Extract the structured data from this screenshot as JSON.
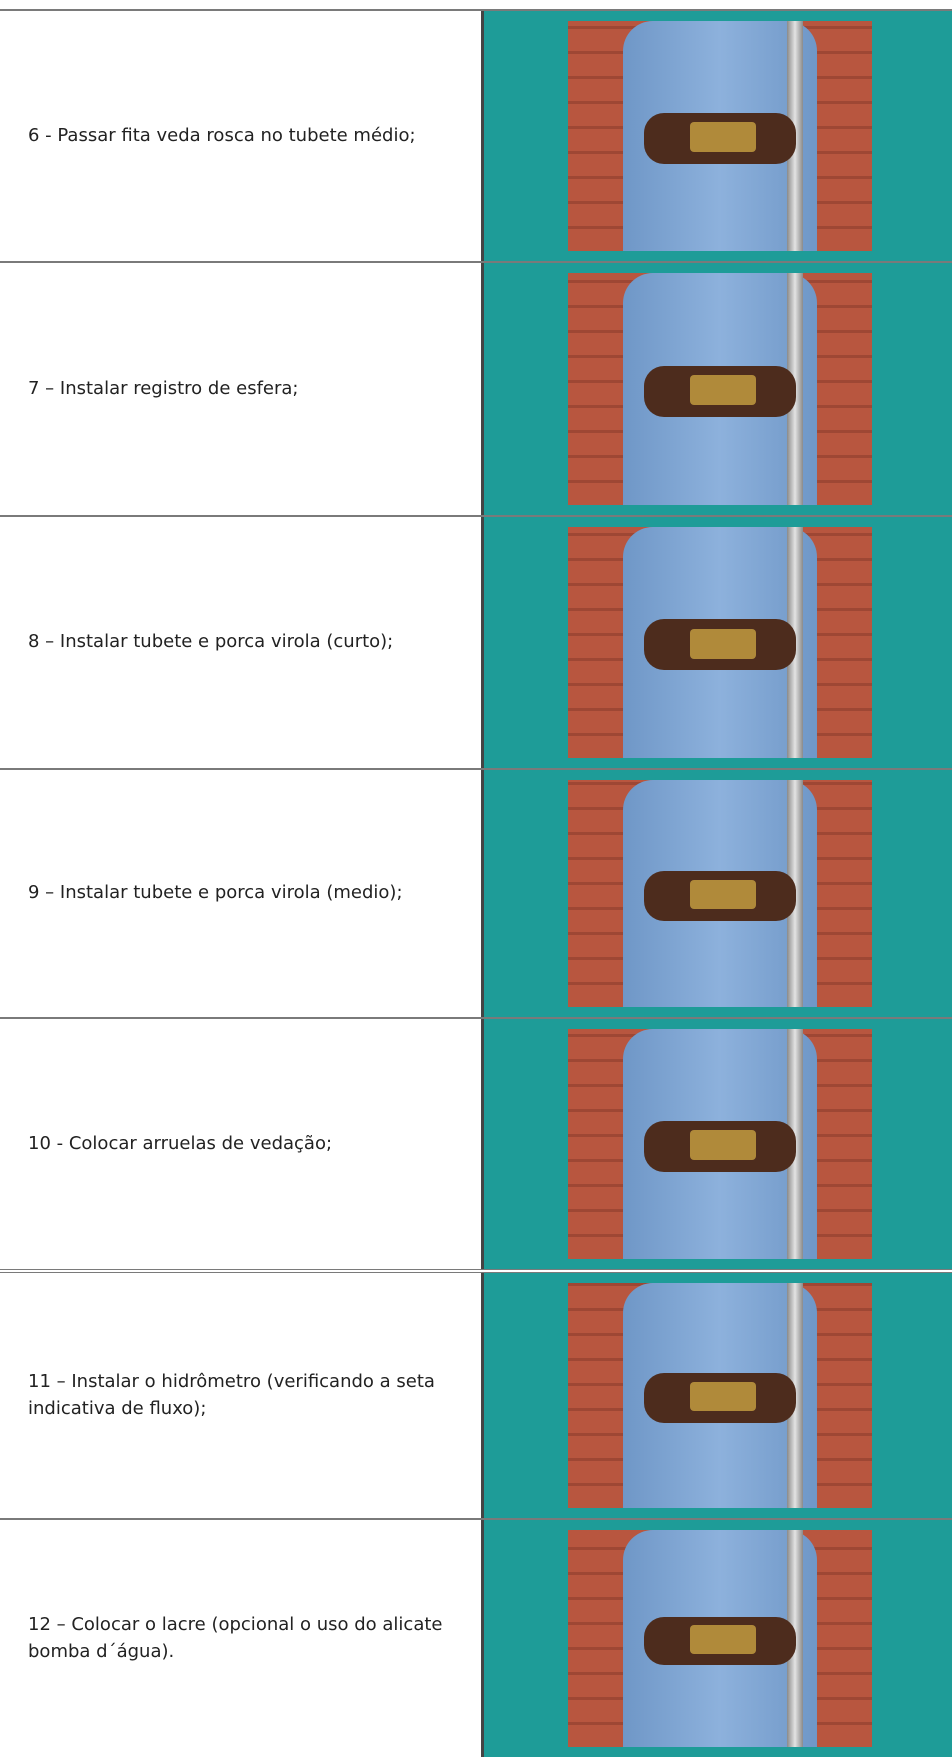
{
  "steps": [
    "6 - Passar fita veda rosca no tubete médio;",
    "7 – Instalar registro de esfera;",
    "8 – Instalar tubete e porca virola (curto);",
    "9 – Instalar tubete e porca virola (medio);",
    "10 - Colocar arruelas de vedação;",
    "11 – Instalar o hidrômetro (verificando a seta indicativa de fluxo);",
    "12 – Colocar o lacre (opcional o uso do alicate bomba d´água)."
  ]
}
